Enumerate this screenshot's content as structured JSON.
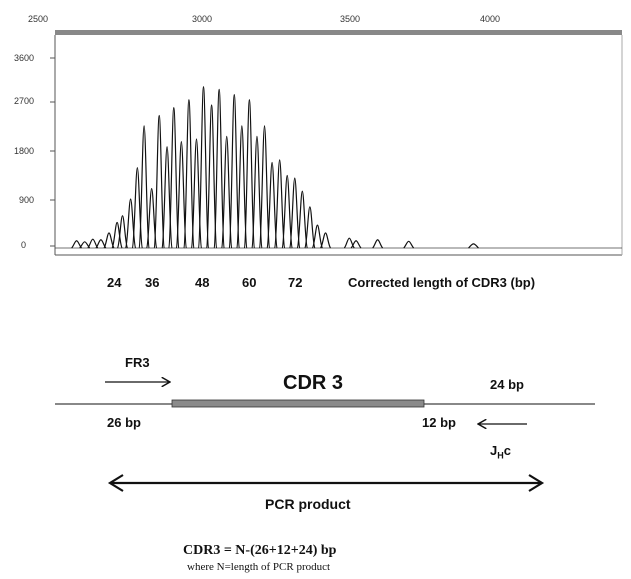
{
  "chart_data": {
    "type": "line",
    "title": "",
    "xlabel": "Corrected length of CDR3 (bp)",
    "ylabel": "",
    "top_axis_ticks": [
      "2500",
      "3000",
      "3500",
      "4000"
    ],
    "y_ticks": [
      "3600",
      "2700",
      "1800",
      "900",
      "0"
    ],
    "x_ticks": [
      "24",
      "36",
      "48",
      "60",
      "72"
    ],
    "ylim": [
      0,
      3600
    ],
    "xlim": [
      2450,
      4550
    ],
    "peaks": {
      "x": [
        2530,
        2560,
        2590,
        2620,
        2650,
        2680,
        2700,
        2730,
        2755,
        2780,
        2808,
        2836,
        2865,
        2890,
        2918,
        2946,
        2974,
        3000,
        3030,
        3058,
        3086,
        3114,
        3142,
        3170,
        3198,
        3226,
        3254,
        3282,
        3310,
        3338,
        3366,
        3394,
        3422,
        3452,
        3540,
        3565,
        3645,
        3760,
        4000
      ],
      "y": [
        100,
        80,
        130,
        120,
        250,
        450,
        580,
        900,
        1500,
        2300,
        1100,
        2500,
        1900,
        2650,
        2000,
        2800,
        2050,
        3050,
        2700,
        3000,
        2100,
        2900,
        2300,
        2800,
        2100,
        2300,
        1600,
        1650,
        1350,
        1300,
        1050,
        750,
        400,
        250,
        150,
        100,
        120,
        90,
        40
      ]
    }
  },
  "diagram": {
    "fr3_label": "FR3",
    "cdr3_label": "CDR 3",
    "bp24_label": "24 bp",
    "bp26_label": "26 bp",
    "bp12_label": "12 bp",
    "jhc_main": "J",
    "jhc_sub": "H",
    "jhc_suffix": "c",
    "pcr_label": "PCR product",
    "formula": "CDR3 = N-(26+12+24) bp",
    "formula_note": "where N=length of PCR product"
  }
}
